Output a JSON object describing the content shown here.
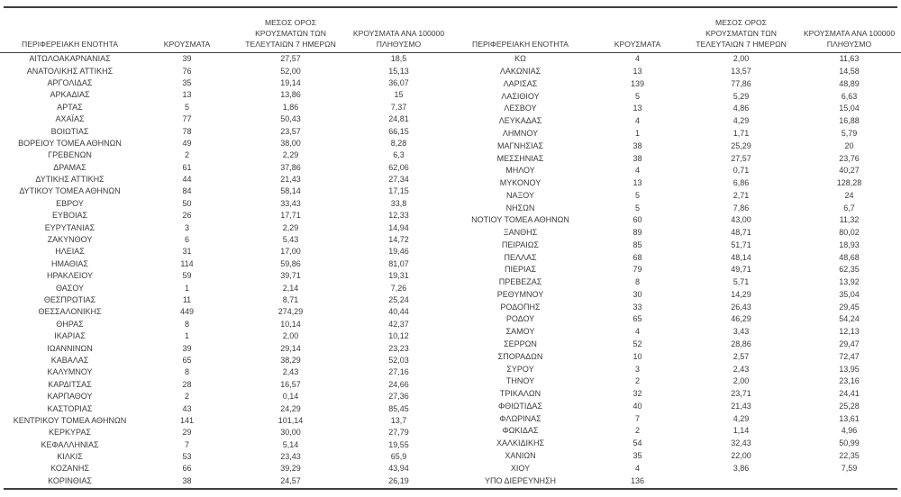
{
  "page": {
    "background_color": "#ffffff",
    "text_color": "#3b3b3b",
    "rule_color": "#3f3f3f"
  },
  "table": {
    "columns": [
      {
        "id": "region",
        "label": "ΠΕΡΙΦΕΡΕΙΑΚΗ ΕΝΟΤΗΤΑ"
      },
      {
        "id": "cases",
        "label": "ΚΡΟΥΣΜΑΤΑ"
      },
      {
        "id": "avg7",
        "label": "ΜΕΣΟΣ ΟΡΟΣ\nΚΡΟΥΣΜΑΤΩΝ ΤΩΝ\nΤΕΛΕΥΤΑΙΩΝ 7 ΗΜΕΡΩΝ"
      },
      {
        "id": "per100k",
        "label": "ΚΡΟΥΣΜΑΤΑ ΑΝΑ 100000\nΠΛΗΘΥΣΜΟ"
      }
    ],
    "left_rows": [
      {
        "region": "ΑΙΤΩΛΟΑΚΑΡΝΑΝΙΑΣ",
        "cases": "39",
        "avg7": "27,57",
        "per100k": "18,5"
      },
      {
        "region": "ΑΝΑΤΟΛΙΚΗΣ ΑΤΤΙΚΗΣ",
        "cases": "76",
        "avg7": "52,00",
        "per100k": "15,13"
      },
      {
        "region": "ΑΡΓΟΛΙΔΑΣ",
        "cases": "35",
        "avg7": "19,14",
        "per100k": "36,07"
      },
      {
        "region": "ΑΡΚΑΔΙΑΣ",
        "cases": "13",
        "avg7": "13,86",
        "per100k": "15"
      },
      {
        "region": "ΑΡΤΑΣ",
        "cases": "5",
        "avg7": "1,86",
        "per100k": "7,37"
      },
      {
        "region": "ΑΧΑΪΑΣ",
        "cases": "77",
        "avg7": "50,43",
        "per100k": "24,81"
      },
      {
        "region": "ΒΟΙΩΤΙΑΣ",
        "cases": "78",
        "avg7": "23,57",
        "per100k": "66,15"
      },
      {
        "region": "ΒΟΡΕΙΟΥ ΤΟΜΕΑ ΑΘΗΝΩΝ",
        "cases": "49",
        "avg7": "38,00",
        "per100k": "8,28"
      },
      {
        "region": "ΓΡΕΒΕΝΩΝ",
        "cases": "2",
        "avg7": "2,29",
        "per100k": "6,3"
      },
      {
        "region": "ΔΡΑΜΑΣ",
        "cases": "61",
        "avg7": "37,86",
        "per100k": "62,06"
      },
      {
        "region": "ΔΥΤΙΚΗΣ ΑΤΤΙΚΗΣ",
        "cases": "44",
        "avg7": "21,43",
        "per100k": "27,34"
      },
      {
        "region": "ΔΥΤΙΚΟΥ ΤΟΜΕΑ ΑΘΗΝΩΝ",
        "cases": "84",
        "avg7": "58,14",
        "per100k": "17,15"
      },
      {
        "region": "ΕΒΡΟΥ",
        "cases": "50",
        "avg7": "33,43",
        "per100k": "33,8"
      },
      {
        "region": "ΕΥΒΟΙΑΣ",
        "cases": "26",
        "avg7": "17,71",
        "per100k": "12,33"
      },
      {
        "region": "ΕΥΡΥΤΑΝΙΑΣ",
        "cases": "3",
        "avg7": "2,29",
        "per100k": "14,94"
      },
      {
        "region": "ΖΑΚΥΝΘΟΥ",
        "cases": "6",
        "avg7": "5,43",
        "per100k": "14,72"
      },
      {
        "region": "ΗΛΕΙΑΣ",
        "cases": "31",
        "avg7": "17,00",
        "per100k": "19,46"
      },
      {
        "region": "ΗΜΑΘΙΑΣ",
        "cases": "114",
        "avg7": "59,86",
        "per100k": "81,07"
      },
      {
        "region": "ΗΡΑΚΛΕΙΟΥ",
        "cases": "59",
        "avg7": "39,71",
        "per100k": "19,31"
      },
      {
        "region": "ΘΑΣΟΥ",
        "cases": "1",
        "avg7": "2,14",
        "per100k": "7,26"
      },
      {
        "region": "ΘΕΣΠΡΩΤΙΑΣ",
        "cases": "11",
        "avg7": "8,71",
        "per100k": "25,24"
      },
      {
        "region": "ΘΕΣΣΑΛΟΝΙΚΗΣ",
        "cases": "449",
        "avg7": "274,29",
        "per100k": "40,44"
      },
      {
        "region": "ΘΗΡΑΣ",
        "cases": "8",
        "avg7": "10,14",
        "per100k": "42,37"
      },
      {
        "region": "ΙΚΑΡΙΑΣ",
        "cases": "1",
        "avg7": "2,00",
        "per100k": "10,12"
      },
      {
        "region": "ΙΩΑΝΝΙΝΩΝ",
        "cases": "39",
        "avg7": "29,14",
        "per100k": "23,23"
      },
      {
        "region": "ΚΑΒΑΛΑΣ",
        "cases": "65",
        "avg7": "38,29",
        "per100k": "52,03"
      },
      {
        "region": "ΚΑΛΥΜΝΟΥ",
        "cases": "8",
        "avg7": "2,43",
        "per100k": "27,16"
      },
      {
        "region": "ΚΑΡΔΙΤΣΑΣ",
        "cases": "28",
        "avg7": "16,57",
        "per100k": "24,66"
      },
      {
        "region": "ΚΑΡΠΑΘΟΥ",
        "cases": "2",
        "avg7": "0,14",
        "per100k": "27,36"
      },
      {
        "region": "ΚΑΣΤΟΡΙΑΣ",
        "cases": "43",
        "avg7": "24,29",
        "per100k": "85,45"
      },
      {
        "region": "ΚΕΝΤΡΙΚΟΥ ΤΟΜΕΑ ΑΘΗΝΩΝ",
        "cases": "141",
        "avg7": "101,14",
        "per100k": "13,7"
      },
      {
        "region": "ΚΕΡΚΥΡΑΣ",
        "cases": "29",
        "avg7": "30,00",
        "per100k": "27,79"
      },
      {
        "region": "ΚΕΦΑΛΛΗΝΙΑΣ",
        "cases": "7",
        "avg7": "5,14",
        "per100k": "19,55"
      },
      {
        "region": "ΚΙΛΚΙΣ",
        "cases": "53",
        "avg7": "23,43",
        "per100k": "65,9"
      },
      {
        "region": "ΚΟΖΑΝΗΣ",
        "cases": "66",
        "avg7": "39,29",
        "per100k": "43,94"
      },
      {
        "region": "ΚΟΡΙΝΘΙΑΣ",
        "cases": "38",
        "avg7": "24,57",
        "per100k": "26,19"
      }
    ],
    "right_rows": [
      {
        "region": "ΚΩ",
        "cases": "4",
        "avg7": "2,00",
        "per100k": "11,63"
      },
      {
        "region": "ΛΑΚΩΝΙΑΣ",
        "cases": "13",
        "avg7": "13,57",
        "per100k": "14,58"
      },
      {
        "region": "ΛΑΡΙΣΑΣ",
        "cases": "139",
        "avg7": "77,86",
        "per100k": "48,89"
      },
      {
        "region": "ΛΑΣΙΘΙΟΥ",
        "cases": "5",
        "avg7": "5,29",
        "per100k": "6,63"
      },
      {
        "region": "ΛΕΣΒΟΥ",
        "cases": "13",
        "avg7": "4,86",
        "per100k": "15,04"
      },
      {
        "region": "ΛΕΥΚΑΔΑΣ",
        "cases": "4",
        "avg7": "4,29",
        "per100k": "16,88"
      },
      {
        "region": "ΛΗΜΝΟΥ",
        "cases": "1",
        "avg7": "1,71",
        "per100k": "5,79"
      },
      {
        "region": "ΜΑΓΝΗΣΙΑΣ",
        "cases": "38",
        "avg7": "25,29",
        "per100k": "20"
      },
      {
        "region": "ΜΕΣΣΗΝΙΑΣ",
        "cases": "38",
        "avg7": "27,57",
        "per100k": "23,76"
      },
      {
        "region": "ΜΗΛΟΥ",
        "cases": "4",
        "avg7": "0,71",
        "per100k": "40,27"
      },
      {
        "region": "ΜΥΚΟΝΟΥ",
        "cases": "13",
        "avg7": "6,86",
        "per100k": "128,28"
      },
      {
        "region": "ΝΑΞΟΥ",
        "cases": "5",
        "avg7": "2,71",
        "per100k": "24"
      },
      {
        "region": "ΝΗΣΩΝ",
        "cases": "5",
        "avg7": "7,86",
        "per100k": "6,7"
      },
      {
        "region": "ΝΟΤΙΟΥ ΤΟΜΕΑ ΑΘΗΝΩΝ",
        "cases": "60",
        "avg7": "43,00",
        "per100k": "11,32"
      },
      {
        "region": "ΞΑΝΘΗΣ",
        "cases": "89",
        "avg7": "48,71",
        "per100k": "80,02"
      },
      {
        "region": "ΠΕΙΡΑΙΩΣ",
        "cases": "85",
        "avg7": "51,71",
        "per100k": "18,93"
      },
      {
        "region": "ΠΕΛΛΑΣ",
        "cases": "68",
        "avg7": "48,14",
        "per100k": "48,68"
      },
      {
        "region": "ΠΙΕΡΙΑΣ",
        "cases": "79",
        "avg7": "49,71",
        "per100k": "62,35"
      },
      {
        "region": "ΠΡΕΒΕΖΑΣ",
        "cases": "8",
        "avg7": "5,71",
        "per100k": "13,92"
      },
      {
        "region": "ΡΕΘΥΜΝΟΥ",
        "cases": "30",
        "avg7": "14,29",
        "per100k": "35,04"
      },
      {
        "region": "ΡΟΔΟΠΗΣ",
        "cases": "33",
        "avg7": "26,43",
        "per100k": "29,45"
      },
      {
        "region": "ΡΟΔΟΥ",
        "cases": "65",
        "avg7": "46,29",
        "per100k": "54,24"
      },
      {
        "region": "ΣΑΜΟΥ",
        "cases": "4",
        "avg7": "3,43",
        "per100k": "12,13"
      },
      {
        "region": "ΣΕΡΡΩΝ",
        "cases": "52",
        "avg7": "28,86",
        "per100k": "29,47"
      },
      {
        "region": "ΣΠΟΡΑΔΩΝ",
        "cases": "10",
        "avg7": "2,57",
        "per100k": "72,47"
      },
      {
        "region": "ΣΥΡΟΥ",
        "cases": "3",
        "avg7": "2,43",
        "per100k": "13,95"
      },
      {
        "region": "ΤΗΝΟΥ",
        "cases": "2",
        "avg7": "2,00",
        "per100k": "23,16"
      },
      {
        "region": "ΤΡΙΚΑΛΩΝ",
        "cases": "32",
        "avg7": "23,71",
        "per100k": "24,41"
      },
      {
        "region": "ΦΘΙΩΤΙΔΑΣ",
        "cases": "40",
        "avg7": "21,43",
        "per100k": "25,28"
      },
      {
        "region": "ΦΛΩΡΙΝΑΣ",
        "cases": "7",
        "avg7": "4,29",
        "per100k": "13,61"
      },
      {
        "region": "ΦΩΚΙΔΑΣ",
        "cases": "2",
        "avg7": "1,14",
        "per100k": "4,96"
      },
      {
        "region": "ΧΑΛΚΙΔΙΚΗΣ",
        "cases": "54",
        "avg7": "32,43",
        "per100k": "50,99"
      },
      {
        "region": "ΧΑΝΙΩΝ",
        "cases": "35",
        "avg7": "22,00",
        "per100k": "22,35"
      },
      {
        "region": "ΧΙΟΥ",
        "cases": "4",
        "avg7": "3,86",
        "per100k": "7,59"
      },
      {
        "region": "ΥΠΟ ΔΙΕΡΕΥΝΗΣΗ",
        "cases": "136",
        "avg7": "",
        "per100k": ""
      }
    ]
  }
}
